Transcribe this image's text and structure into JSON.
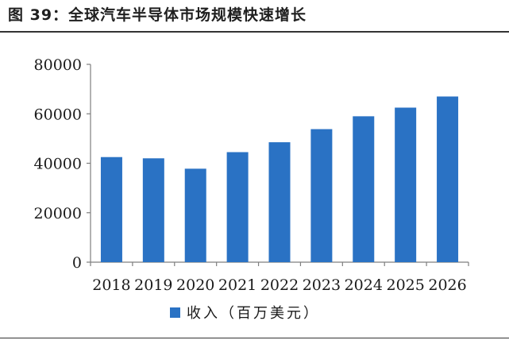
{
  "title": "图 39：全球汽车半导体市场规模快速增长",
  "colors": {
    "bar": "#2a72c4",
    "axis": "#7f7f7f",
    "text": "#1a1a1a"
  },
  "chart_data": {
    "type": "bar",
    "categories": [
      "2018",
      "2019",
      "2020",
      "2021",
      "2022",
      "2023",
      "2024",
      "2025",
      "2026"
    ],
    "series": [
      {
        "name": "收入（百万美元）",
        "values": [
          42500,
          42000,
          37800,
          44500,
          48500,
          53800,
          59000,
          62500,
          67000
        ]
      }
    ],
    "ylim": [
      0,
      80000
    ],
    "yticks": [
      0,
      20000,
      40000,
      60000,
      80000
    ],
    "legend": "bottom",
    "grid": false
  }
}
